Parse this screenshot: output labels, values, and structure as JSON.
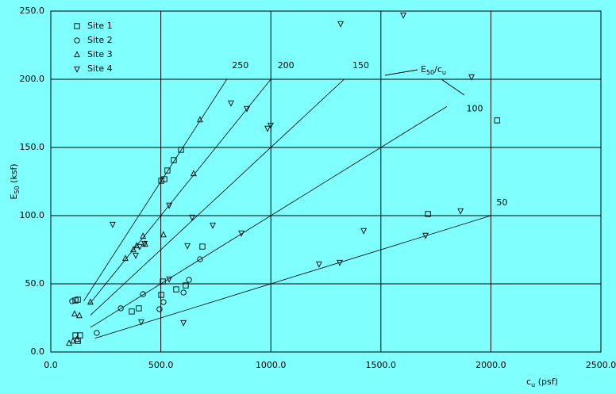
{
  "chart_data": {
    "type": "scatter",
    "xlabel": {
      "main": "c",
      "sub": "u",
      "rest": " (psf)"
    },
    "ylabel": {
      "main": "E",
      "sub": "50",
      "rest": " (ksf)"
    },
    "xlim": [
      0,
      2500
    ],
    "ylim": [
      0,
      250
    ],
    "xticks": [
      {
        "value": 0,
        "label": "0.0"
      },
      {
        "value": 500,
        "label": "500.0"
      },
      {
        "value": 1000,
        "label": "1000.0"
      },
      {
        "value": 1500,
        "label": "1500.0"
      },
      {
        "value": 2000,
        "label": "2000.0"
      },
      {
        "value": 2500,
        "label": "2500.0"
      }
    ],
    "yticks": [
      {
        "value": 0,
        "label": "0.0"
      },
      {
        "value": 50,
        "label": "50.0"
      },
      {
        "value": 100,
        "label": "100.0"
      },
      {
        "value": 150,
        "label": "150.0"
      },
      {
        "value": 200,
        "label": "200.0"
      },
      {
        "value": 250,
        "label": "250.0"
      }
    ],
    "grid": true,
    "legend": "upper left",
    "series": [
      {
        "name": "Site 1",
        "marker": "square",
        "color": "#000000",
        "x": [
          112,
          123,
          112,
          133,
          123,
          368,
          400,
          502,
          509,
          502,
          516,
          530,
          559,
          592,
          570,
          613,
          689,
          1714,
          2028
        ],
        "values": [
          37.8,
          38.4,
          12.2,
          12.2,
          8.1,
          29.7,
          32.0,
          41.9,
          51.7,
          125.6,
          126.7,
          133.1,
          140.7,
          148.3,
          45.9,
          48.8,
          77.3,
          101.2,
          169.8
        ]
      },
      {
        "name": "Site 2",
        "marker": "circle",
        "color": "#000000",
        "x": [
          97,
          209,
          318,
          419,
          494,
          512,
          603,
          628,
          678
        ],
        "values": [
          37.2,
          14.0,
          32.0,
          42.4,
          31.4,
          36.6,
          43.6,
          52.9,
          68.0
        ]
      },
      {
        "name": "Site 3",
        "marker": "triangle-up",
        "color": "#000000",
        "x": [
          83,
          101,
          119,
          108,
          130,
          180,
          339,
          375,
          390,
          419,
          429,
          512,
          649,
          678
        ],
        "values": [
          6.4,
          8.1,
          9.3,
          27.9,
          26.7,
          36.6,
          68.6,
          75.0,
          77.9,
          84.9,
          79.1,
          86.0,
          130.8,
          170.3
        ]
      },
      {
        "name": "Site 4",
        "marker": "triangle-down",
        "color": "#000000",
        "x": [
          281,
          386,
          404,
          426,
          411,
          538,
          538,
          621,
          642,
          603,
          736,
          819,
          891,
          866,
          985,
          999,
          1219,
          1313,
          1317,
          1422,
          1602,
          1703,
          1862,
          1912
        ],
        "values": [
          93.6,
          70.9,
          77.3,
          79.6,
          22.1,
          53.5,
          107.6,
          77.9,
          98.8,
          21.5,
          93.0,
          182.6,
          178.5,
          87.2,
          164.0,
          166.3,
          64.5,
          65.7,
          240.7,
          89.0,
          247.1,
          85.5,
          103.5,
          201.7
        ]
      }
    ],
    "ratio_lines": [
      {
        "label": "250",
        "x": [
          150,
          800
        ],
        "y": [
          37.5,
          200
        ]
      },
      {
        "label": "200",
        "x": [
          175,
          1000
        ],
        "y": [
          35,
          200
        ]
      },
      {
        "label": "150",
        "x": [
          180,
          1333
        ],
        "y": [
          27,
          200
        ]
      },
      {
        "label": "100",
        "x": [
          180,
          1800
        ],
        "y": [
          18,
          180
        ]
      },
      {
        "label": "50",
        "x": [
          200,
          2000
        ],
        "y": [
          10,
          100
        ]
      }
    ],
    "annotation": {
      "main": "E",
      "sub": "50",
      "mid": "/c",
      "sub2": "u"
    }
  }
}
